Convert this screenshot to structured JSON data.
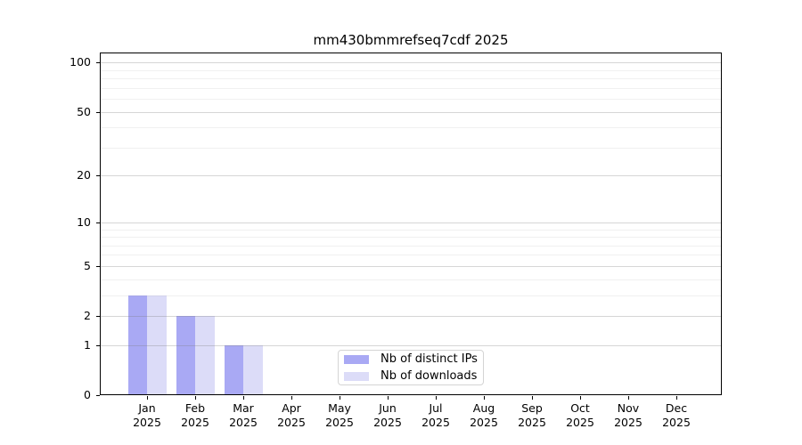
{
  "chart_data": {
    "type": "bar",
    "title": "mm430bmmrefseq7cdf 2025",
    "categories": [
      "Jan",
      "Feb",
      "Mar",
      "Apr",
      "May",
      "Jun",
      "Jul",
      "Aug",
      "Sep",
      "Oct",
      "Nov",
      "Dec"
    ],
    "x_tick_year": "2025",
    "series": [
      {
        "name": "Nb of distinct IPs",
        "color": "#a9a9f4",
        "values": [
          3,
          2,
          1,
          0,
          0,
          0,
          0,
          0,
          0,
          0,
          0,
          0
        ]
      },
      {
        "name": "Nb of downloads",
        "color": "#dcdcf8",
        "values": [
          3,
          2,
          1,
          0,
          0,
          0,
          0,
          0,
          0,
          0,
          0,
          0
        ]
      }
    ],
    "y_axis": {
      "scale": "log10(1+y)",
      "tick_values": [
        0,
        1,
        2,
        5,
        10,
        20,
        50,
        100
      ],
      "tick_labels": [
        "0",
        "1",
        "2",
        "5",
        "10",
        "20",
        "50",
        "100"
      ],
      "ylim": [
        0,
        115
      ],
      "grid": true
    },
    "xlabel": "",
    "ylabel": "",
    "legend_position": "lower center"
  }
}
